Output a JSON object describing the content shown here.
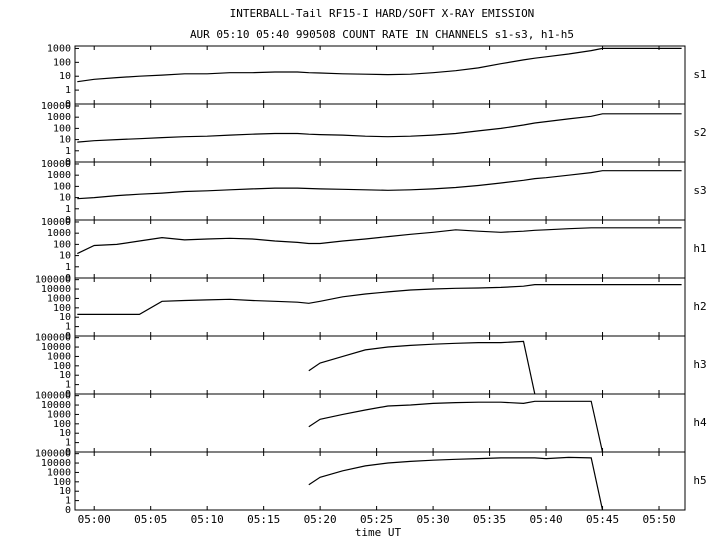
{
  "chart_data": {
    "type": "line",
    "title": "INTERBALL-Tail RF15-I HARD/SOFT X-RAY EMISSION",
    "subtitle": "AUR 05:10 05:40 990508  COUNT RATE IN CHANNELS s1-s3, h1-h5",
    "xlabel": "time UT",
    "yscale": "log",
    "color": "#000000",
    "xlim": [
      -1.7,
      52.3
    ],
    "xticks": [
      {
        "value": 0,
        "label": "05:00"
      },
      {
        "value": 5,
        "label": "05:05"
      },
      {
        "value": 10,
        "label": "05:10"
      },
      {
        "value": 15,
        "label": "05:15"
      },
      {
        "value": 20,
        "label": "05:20"
      },
      {
        "value": 25,
        "label": "05:25"
      },
      {
        "value": 30,
        "label": "05:30"
      },
      {
        "value": 35,
        "label": "05:35"
      },
      {
        "value": 40,
        "label": "05:40"
      },
      {
        "value": 45,
        "label": "05:45"
      },
      {
        "value": 50,
        "label": "05:50"
      }
    ],
    "x": [
      -1.5,
      0,
      2,
      4,
      6,
      8,
      10,
      12,
      14,
      16,
      18,
      19,
      20,
      22,
      24,
      26,
      28,
      30,
      32,
      34,
      36,
      38,
      39,
      40,
      42,
      44,
      45,
      46,
      48,
      50,
      52
    ],
    "panels": [
      {
        "name": "s1",
        "ylim": [
          0.1,
          1500
        ],
        "yticks": [
          1000,
          100,
          10,
          1,
          {
            "value": 0.1,
            "label": "0"
          }
        ],
        "values": [
          4,
          6,
          8,
          10,
          12,
          15,
          15,
          18,
          18,
          20,
          20,
          18,
          17,
          15,
          14,
          13,
          14,
          18,
          25,
          40,
          80,
          150,
          200,
          250,
          400,
          700,
          1000,
          1000,
          1000,
          1000,
          1000
        ]
      },
      {
        "name": "s2",
        "ylim": [
          0.1,
          15000
        ],
        "yticks": [
          10000,
          1000,
          100,
          10,
          1,
          {
            "value": 0.1,
            "label": "0"
          }
        ],
        "values": [
          6,
          8,
          10,
          12,
          15,
          18,
          20,
          25,
          30,
          35,
          35,
          30,
          28,
          25,
          20,
          18,
          20,
          25,
          35,
          60,
          100,
          200,
          300,
          400,
          700,
          1200,
          2000,
          2000,
          2000,
          2000,
          2000
        ]
      },
      {
        "name": "s3",
        "ylim": [
          0.1,
          15000
        ],
        "yticks": [
          10000,
          1000,
          100,
          10,
          1,
          {
            "value": 0.1,
            "label": "0"
          }
        ],
        "values": [
          8,
          10,
          15,
          20,
          25,
          35,
          40,
          50,
          60,
          70,
          70,
          65,
          60,
          55,
          50,
          45,
          50,
          60,
          80,
          120,
          200,
          350,
          500,
          600,
          1000,
          1700,
          2500,
          2500,
          2500,
          2500,
          2500
        ]
      },
      {
        "name": "h1",
        "ylim": [
          0.1,
          15000
        ],
        "yticks": [
          10000,
          1000,
          100,
          10,
          1,
          {
            "value": 0.1,
            "label": "0"
          }
        ],
        "values": [
          15,
          80,
          100,
          200,
          400,
          250,
          300,
          350,
          300,
          200,
          150,
          120,
          120,
          200,
          300,
          500,
          800,
          1200,
          2000,
          1500,
          1200,
          1500,
          1800,
          2000,
          2500,
          3000,
          3000,
          3000,
          3000,
          3000,
          3000
        ]
      },
      {
        "name": "h2",
        "ylim": [
          0.1,
          150000
        ],
        "yticks": [
          100000,
          10000,
          1000,
          100,
          10,
          1,
          {
            "value": 0.1,
            "label": "0"
          }
        ],
        "values": [
          20,
          20,
          20,
          20,
          500,
          600,
          700,
          800,
          600,
          500,
          400,
          300,
          500,
          1500,
          3000,
          5000,
          8000,
          10000,
          12000,
          13000,
          15000,
          20000,
          30000,
          30000,
          30000,
          30000,
          30000,
          30000,
          30000,
          30000,
          30000
        ]
      },
      {
        "name": "h3",
        "ylim": [
          0.1,
          150000
        ],
        "yticks": [
          100000,
          10000,
          1000,
          100,
          10,
          1,
          {
            "value": 0.1,
            "label": "0"
          }
        ],
        "values": [
          null,
          null,
          null,
          null,
          null,
          null,
          null,
          null,
          null,
          null,
          null,
          30,
          200,
          1000,
          5000,
          10000,
          15000,
          20000,
          25000,
          30000,
          30000,
          40000,
          0.1,
          null,
          null,
          null,
          null,
          null,
          null,
          null,
          null
        ]
      },
      {
        "name": "h4",
        "ylim": [
          0.1,
          150000
        ],
        "yticks": [
          100000,
          10000,
          1000,
          100,
          10,
          1,
          {
            "value": 0.1,
            "label": "0"
          }
        ],
        "values": [
          null,
          null,
          null,
          null,
          null,
          null,
          null,
          null,
          null,
          null,
          null,
          50,
          300,
          1000,
          3000,
          8000,
          10000,
          15000,
          18000,
          20000,
          20000,
          15000,
          25000,
          25000,
          25000,
          25000,
          0.1,
          null,
          null,
          null,
          null
        ]
      },
      {
        "name": "h5",
        "ylim": [
          0.1,
          150000
        ],
        "yticks": [
          100000,
          10000,
          1000,
          100,
          10,
          1,
          {
            "value": 0.1,
            "label": "0"
          }
        ],
        "values": [
          null,
          null,
          null,
          null,
          null,
          null,
          null,
          null,
          null,
          null,
          null,
          50,
          300,
          1500,
          5000,
          10000,
          15000,
          20000,
          25000,
          30000,
          35000,
          35000,
          35000,
          30000,
          40000,
          35000,
          0.1,
          null,
          null,
          null,
          null
        ]
      }
    ]
  }
}
